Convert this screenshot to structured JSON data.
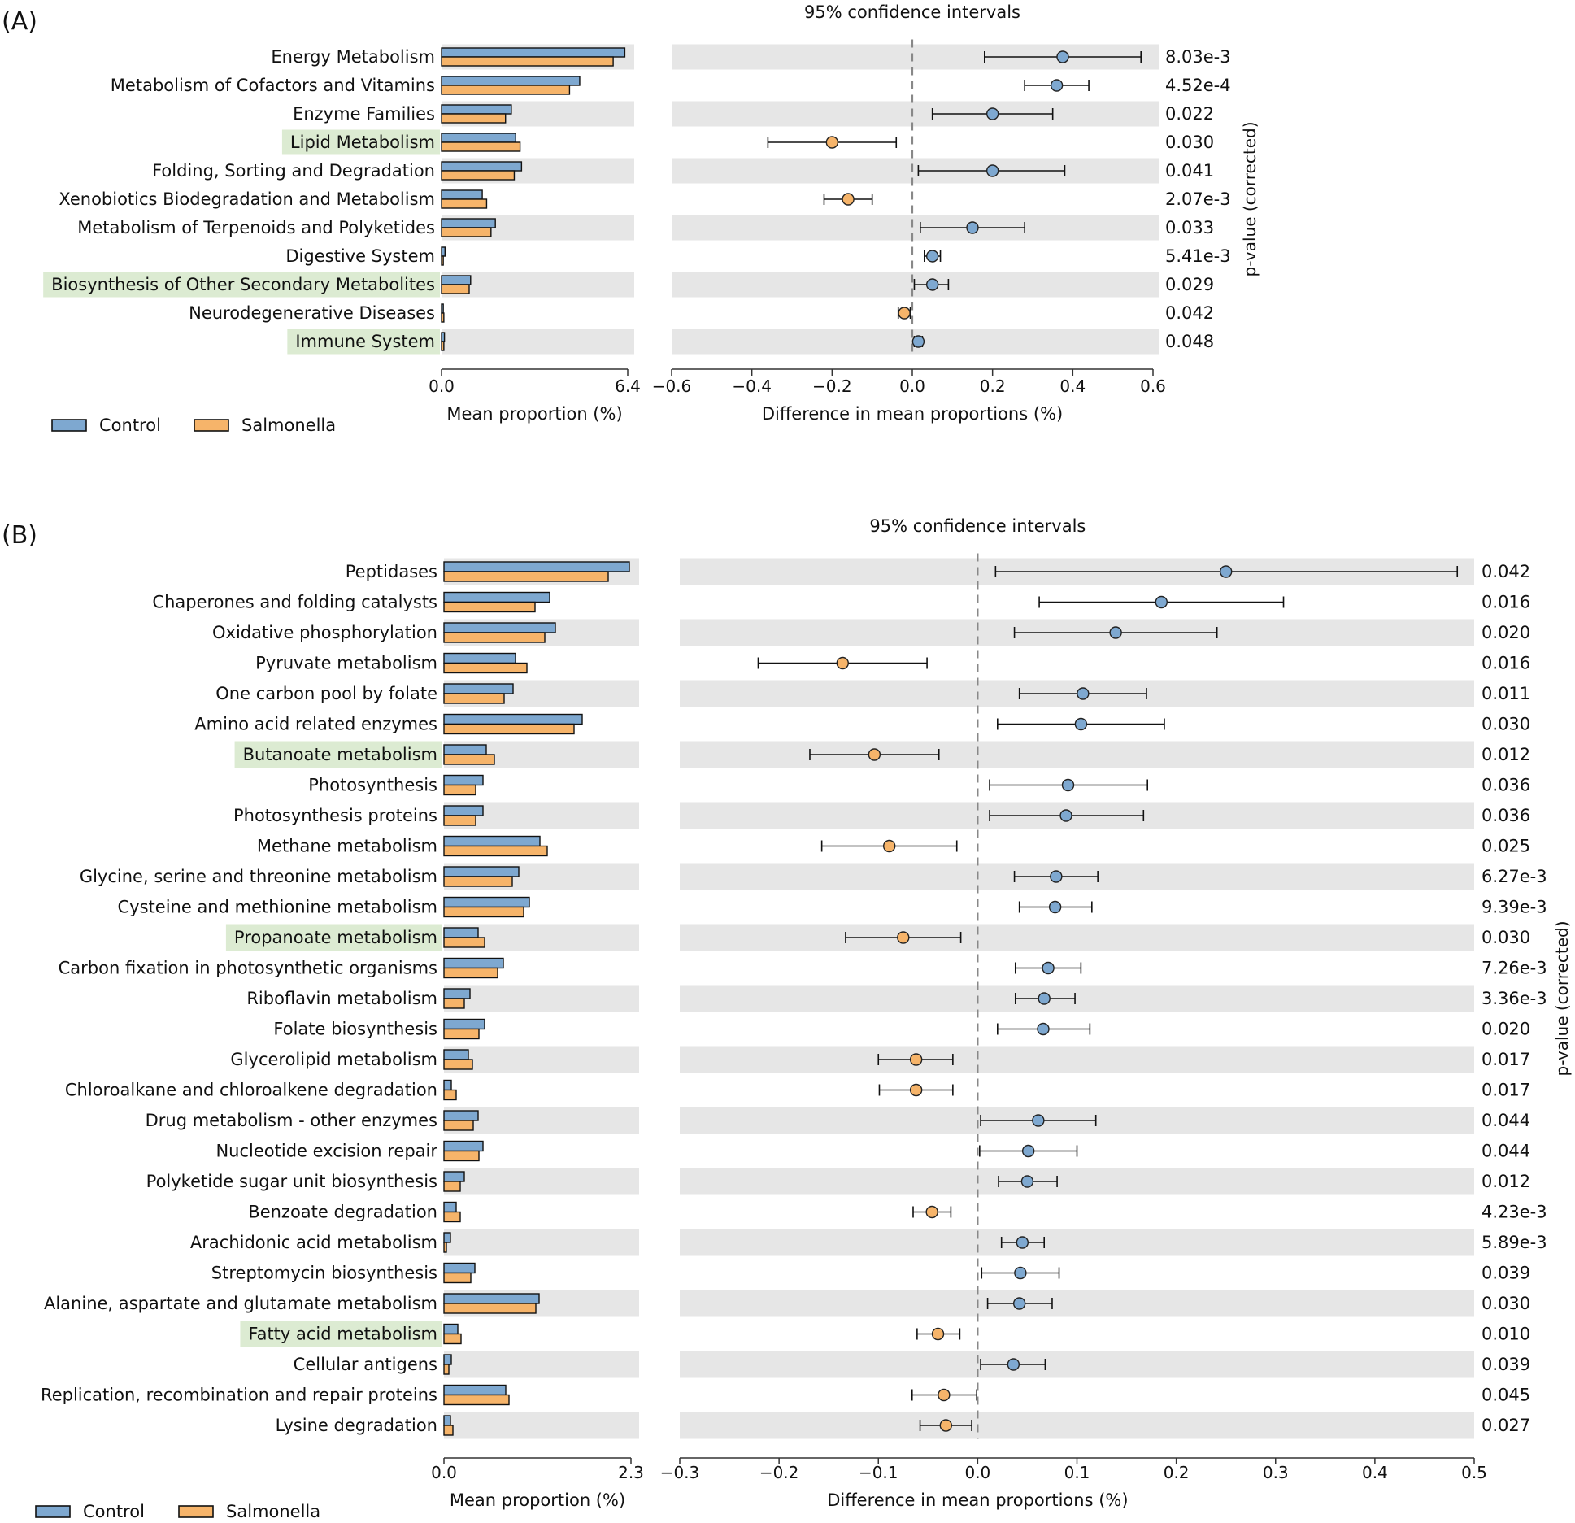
{
  "figure": {
    "colors": {
      "control": "#7ea8d0",
      "salmonella": "#f6b46a",
      "stripe": "#e6e6e6",
      "highlight": "#dcebd2",
      "dashed": "#888888"
    }
  },
  "chart_data": [
    {
      "panel_tag": "(A)",
      "type": "bar",
      "ci_title": "95% confidence intervals",
      "bar_xlabel": "Mean proportion (%)",
      "bar_xlim": [
        0,
        6.4
      ],
      "bar_ticks": [
        "0.0",
        "6.4"
      ],
      "diff_xlabel": "Difference in mean proportions (%)",
      "diff_xlim": [
        -0.6,
        0.6
      ],
      "diff_ticks": [
        -0.6,
        -0.4,
        -0.2,
        0.0,
        0.2,
        0.4,
        0.6
      ],
      "diff_tick_labels": [
        "−0.6",
        "−0.4",
        "−0.2",
        "0.0",
        "0.2",
        "0.4",
        "0.6"
      ],
      "pvalue_label": "p-value (corrected)",
      "legend": [
        "Control",
        "Salmonella"
      ],
      "categories": [
        "Energy Metabolism",
        "Metabolism of Cofactors and Vitamins",
        "Enzyme Families",
        "Lipid Metabolism",
        "Folding, Sorting and Degradation",
        "Xenobiotics Biodegradation and Metabolism",
        "Metabolism of Terpenoids and Polyketides",
        "Digestive System",
        "Biosynthesis of Other Secondary Metabolites",
        "Neurodegenerative Diseases",
        "Immune System"
      ],
      "highlighted": [
        "Lipid Metabolism",
        "Biosynthesis of Other Secondary Metabolites",
        "Immune System"
      ],
      "series": [
        {
          "name": "Control",
          "values": [
            6.3,
            4.75,
            2.4,
            2.55,
            2.75,
            1.4,
            1.85,
            0.12,
            1.0,
            0.06,
            0.1
          ]
        },
        {
          "name": "Salmonella",
          "values": [
            5.9,
            4.4,
            2.2,
            2.7,
            2.5,
            1.55,
            1.7,
            0.06,
            0.95,
            0.08,
            0.08
          ]
        }
      ],
      "diff": [
        {
          "mean": 0.375,
          "lo": 0.18,
          "hi": 0.57
        },
        {
          "mean": 0.36,
          "lo": 0.28,
          "hi": 0.44
        },
        {
          "mean": 0.2,
          "lo": 0.05,
          "hi": 0.35
        },
        {
          "mean": -0.2,
          "lo": -0.36,
          "hi": -0.04
        },
        {
          "mean": 0.2,
          "lo": 0.015,
          "hi": 0.38
        },
        {
          "mean": -0.16,
          "lo": -0.22,
          "hi": -0.1
        },
        {
          "mean": 0.15,
          "lo": 0.02,
          "hi": 0.28
        },
        {
          "mean": 0.05,
          "lo": 0.03,
          "hi": 0.07
        },
        {
          "mean": 0.05,
          "lo": 0.005,
          "hi": 0.09
        },
        {
          "mean": -0.02,
          "lo": -0.035,
          "hi": -0.005
        },
        {
          "mean": 0.015,
          "lo": 0.005,
          "hi": 0.025
        }
      ],
      "pvalues": [
        "8.03e-3",
        "4.52e-4",
        "0.022",
        "0.030",
        "0.041",
        "2.07e-3",
        "0.033",
        "5.41e-3",
        "0.029",
        "0.042",
        "0.048"
      ]
    },
    {
      "panel_tag": "(B)",
      "type": "bar",
      "ci_title": "95% confidence intervals",
      "bar_xlabel": "Mean proportion (%)",
      "bar_xlim": [
        0,
        2.3
      ],
      "bar_ticks": [
        "0.0",
        "2.3"
      ],
      "diff_xlabel": "Difference in mean proportions (%)",
      "diff_xlim": [
        -0.3,
        0.5
      ],
      "diff_ticks": [
        -0.3,
        -0.2,
        -0.1,
        0.0,
        0.1,
        0.2,
        0.3,
        0.4,
        0.5
      ],
      "diff_tick_labels": [
        "−0.3",
        "−0.2",
        "−0.1",
        "0.0",
        "0.1",
        "0.2",
        "0.3",
        "0.4",
        "0.5"
      ],
      "pvalue_label": "p-value (corrected)",
      "legend": [
        "Control",
        "Salmonella"
      ],
      "categories": [
        "Peptidases",
        "Chaperones and folding catalysts",
        "Oxidative phosphorylation",
        "Pyruvate metabolism",
        "One carbon pool by folate",
        "Amino acid related enzymes",
        "Butanoate metabolism",
        "Photosynthesis",
        "Photosynthesis proteins",
        "Methane metabolism",
        "Glycine, serine and threonine metabolism",
        "Cysteine and methionine metabolism",
        "Propanoate metabolism",
        "Carbon fixation in photosynthetic organisms",
        "Riboflavin metabolism",
        "Folate biosynthesis",
        "Glycerolipid metabolism",
        "Chloroalkane and chloroalkene degradation",
        "Drug metabolism - other enzymes",
        "Nucleotide excision repair",
        "Polyketide sugar unit biosynthesis",
        "Benzoate degradation",
        "Arachidonic acid metabolism",
        "Streptomycin biosynthesis",
        "Alanine, aspartate and glutamate metabolism",
        "Fatty acid metabolism",
        "Cellular antigens",
        "Replication, recombination and repair proteins",
        "Lysine degradation"
      ],
      "highlighted": [
        "Butanoate metabolism",
        "Propanoate metabolism",
        "Fatty acid metabolism"
      ],
      "series": [
        {
          "name": "Control",
          "values": [
            2.28,
            1.3,
            1.37,
            0.88,
            0.85,
            1.7,
            0.52,
            0.48,
            0.48,
            1.18,
            0.92,
            1.05,
            0.42,
            0.73,
            0.32,
            0.5,
            0.3,
            0.09,
            0.42,
            0.48,
            0.25,
            0.15,
            0.08,
            0.38,
            1.17,
            0.17,
            0.09,
            0.76,
            0.08
          ]
        },
        {
          "name": "Salmonella",
          "values": [
            2.02,
            1.12,
            1.24,
            1.02,
            0.74,
            1.6,
            0.62,
            0.39,
            0.39,
            1.27,
            0.84,
            0.98,
            0.5,
            0.66,
            0.25,
            0.43,
            0.35,
            0.15,
            0.36,
            0.43,
            0.2,
            0.2,
            0.03,
            0.33,
            1.13,
            0.21,
            0.06,
            0.8,
            0.11
          ]
        }
      ],
      "diff": [
        {
          "mean": 0.25,
          "lo": 0.018,
          "hi": 0.483
        },
        {
          "mean": 0.185,
          "lo": 0.062,
          "hi": 0.308
        },
        {
          "mean": 0.139,
          "lo": 0.037,
          "hi": 0.241
        },
        {
          "mean": -0.136,
          "lo": -0.221,
          "hi": -0.051
        },
        {
          "mean": 0.106,
          "lo": 0.042,
          "hi": 0.17
        },
        {
          "mean": 0.104,
          "lo": 0.02,
          "hi": 0.188
        },
        {
          "mean": -0.104,
          "lo": -0.169,
          "hi": -0.039
        },
        {
          "mean": 0.091,
          "lo": 0.012,
          "hi": 0.171
        },
        {
          "mean": 0.089,
          "lo": 0.012,
          "hi": 0.167
        },
        {
          "mean": -0.089,
          "lo": -0.157,
          "hi": -0.021
        },
        {
          "mean": 0.079,
          "lo": 0.037,
          "hi": 0.121
        },
        {
          "mean": 0.078,
          "lo": 0.042,
          "hi": 0.115
        },
        {
          "mean": -0.075,
          "lo": -0.133,
          "hi": -0.017
        },
        {
          "mean": 0.071,
          "lo": 0.038,
          "hi": 0.104
        },
        {
          "mean": 0.067,
          "lo": 0.038,
          "hi": 0.098
        },
        {
          "mean": 0.066,
          "lo": 0.02,
          "hi": 0.113
        },
        {
          "mean": -0.062,
          "lo": -0.1,
          "hi": -0.025
        },
        {
          "mean": -0.062,
          "lo": -0.099,
          "hi": -0.025
        },
        {
          "mean": 0.061,
          "lo": 0.003,
          "hi": 0.119
        },
        {
          "mean": 0.051,
          "lo": 0.002,
          "hi": 0.1
        },
        {
          "mean": 0.05,
          "lo": 0.021,
          "hi": 0.08
        },
        {
          "mean": -0.046,
          "lo": -0.065,
          "hi": -0.027
        },
        {
          "mean": 0.045,
          "lo": 0.024,
          "hi": 0.067
        },
        {
          "mean": 0.043,
          "lo": 0.004,
          "hi": 0.082
        },
        {
          "mean": 0.042,
          "lo": 0.01,
          "hi": 0.075
        },
        {
          "mean": -0.04,
          "lo": -0.061,
          "hi": -0.018
        },
        {
          "mean": 0.036,
          "lo": 0.003,
          "hi": 0.068
        },
        {
          "mean": -0.034,
          "lo": -0.066,
          "hi": -0.001
        },
        {
          "mean": -0.032,
          "lo": -0.058,
          "hi": -0.006
        }
      ],
      "pvalues": [
        "0.042",
        "0.016",
        "0.020",
        "0.016",
        "0.011",
        "0.030",
        "0.012",
        "0.036",
        "0.036",
        "0.025",
        "6.27e-3",
        "9.39e-3",
        "0.030",
        "7.26e-3",
        "3.36e-3",
        "0.020",
        "0.017",
        "0.017",
        "0.044",
        "0.044",
        "0.012",
        "4.23e-3",
        "5.89e-3",
        "0.039",
        "0.030",
        "0.010",
        "0.039",
        "0.045",
        "0.027"
      ]
    }
  ]
}
